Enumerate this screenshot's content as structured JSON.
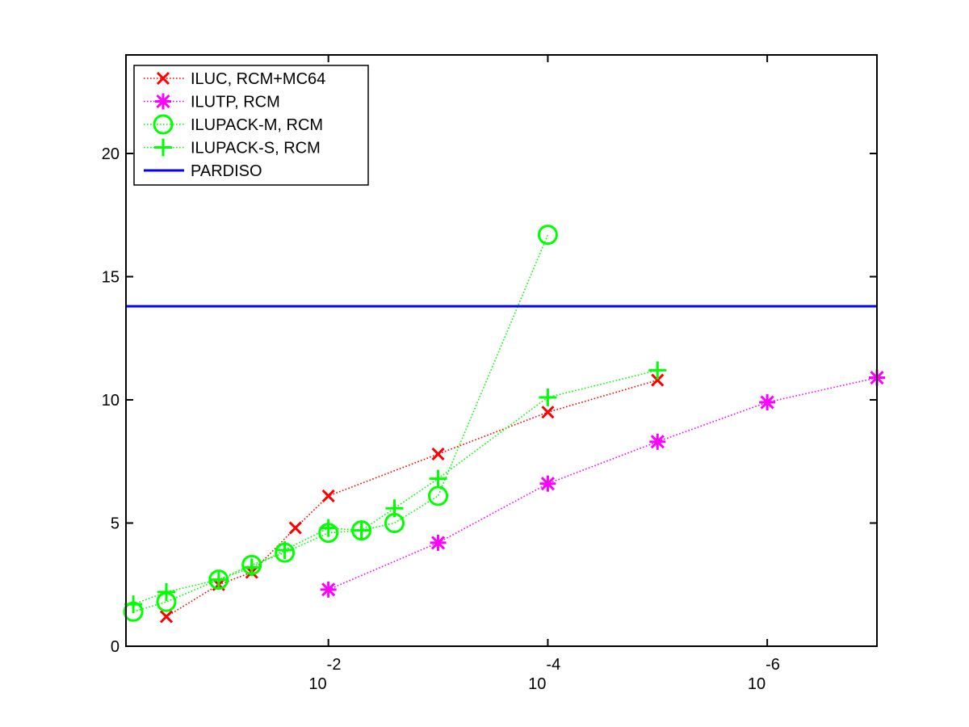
{
  "chart_data": {
    "type": "line",
    "title": "",
    "xlabel": "",
    "ylabel": "",
    "x_scale": "log",
    "x_reversed": true,
    "xlim": [
      0.7,
      1e-07
    ],
    "ylim": [
      0,
      24
    ],
    "grid": false,
    "legend_position": "top-left",
    "x_ticks": [
      {
        "value": 0.01,
        "base": "10",
        "exponent": "-2"
      },
      {
        "value": 0.0001,
        "base": "10",
        "exponent": "-4"
      },
      {
        "value": 1e-06,
        "base": "10",
        "exponent": "-6"
      }
    ],
    "y_ticks": [
      {
        "value": 0,
        "label": "0"
      },
      {
        "value": 5,
        "label": "5"
      },
      {
        "value": 10,
        "label": "10"
      },
      {
        "value": 15,
        "label": "15"
      },
      {
        "value": 20,
        "label": "20"
      }
    ],
    "series": [
      {
        "name": "ILUC, RCM+MC64",
        "color": "#ff0000",
        "marker": "x",
        "line_style": "dotted",
        "x": [
          0.3,
          0.1,
          0.05,
          0.02,
          0.01,
          0.001,
          0.0001,
          1e-05
        ],
        "y": [
          1.2,
          2.5,
          3.0,
          4.8,
          6.1,
          7.8,
          9.5,
          10.8
        ]
      },
      {
        "name": "ILUTP, RCM",
        "color": "#ff00ff",
        "marker": "asterisk",
        "line_style": "dotted",
        "x": [
          0.01,
          0.001,
          0.0001,
          1e-05,
          1e-06,
          1e-07
        ],
        "y": [
          2.3,
          4.2,
          6.6,
          8.3,
          9.9,
          10.9
        ]
      },
      {
        "name": "ILUPACK-M, RCM",
        "color": "#00ff00",
        "marker": "circle",
        "line_style": "dotted",
        "x": [
          0.6,
          0.3,
          0.1,
          0.05,
          0.025,
          0.01,
          0.005,
          0.0025,
          0.001,
          0.0001
        ],
        "y": [
          1.4,
          1.8,
          2.7,
          3.3,
          3.8,
          4.6,
          4.7,
          5.0,
          6.1,
          16.7
        ]
      },
      {
        "name": "ILUPACK-S, RCM",
        "color": "#00ff00",
        "marker": "plus",
        "line_style": "dotted",
        "x": [
          0.6,
          0.3,
          0.1,
          0.05,
          0.025,
          0.01,
          0.005,
          0.0025,
          0.001,
          0.0001,
          1e-05
        ],
        "y": [
          1.7,
          2.2,
          2.7,
          3.2,
          3.9,
          4.8,
          4.7,
          5.6,
          6.8,
          10.1,
          11.2
        ]
      },
      {
        "name": "PARDISO",
        "color": "#0000ff",
        "marker": "none",
        "line_style": "solid",
        "x": [
          0.7,
          1e-07
        ],
        "y": [
          13.8,
          13.8
        ]
      }
    ]
  }
}
